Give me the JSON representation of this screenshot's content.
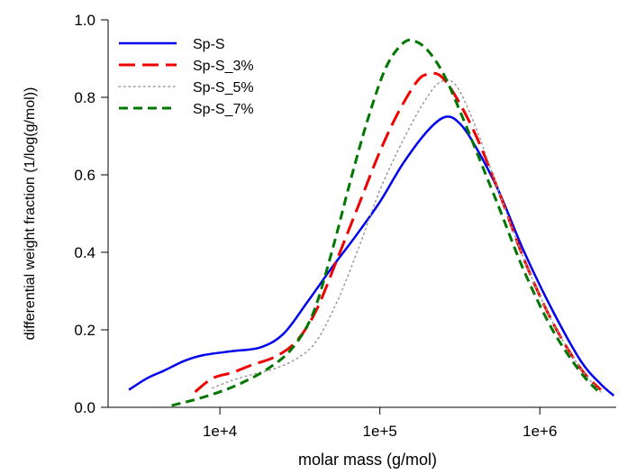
{
  "chart_data": {
    "type": "line",
    "title": "",
    "xlabel": "molar mass (g/mol)",
    "ylabel": "differential weight fraction (1/log(g/mol))",
    "xscale": "log",
    "xlim": [
      2000,
      3000000
    ],
    "ylim": [
      0.0,
      1.0
    ],
    "x_ticks": [
      10000,
      100000,
      1000000
    ],
    "x_tick_labels": [
      "1e+4",
      "1e+5",
      "1e+6"
    ],
    "y_ticks": [
      0.0,
      0.2,
      0.4,
      0.6,
      0.8,
      1.0
    ],
    "y_tick_labels": [
      "0.0",
      "0.2",
      "0.4",
      "0.6",
      "0.8",
      "1.0"
    ],
    "grid": false,
    "legend_position": "top-left",
    "series": [
      {
        "name": "Sp-S",
        "color": "#0000ee",
        "style": "solid",
        "x": [
          2700,
          3500,
          4500,
          6000,
          8000,
          12000,
          18000,
          25000,
          35000,
          50000,
          70000,
          100000,
          140000,
          200000,
          260000,
          320000,
          400000,
          550000,
          800000,
          1200000,
          1800000,
          2400000,
          2900000
        ],
        "y": [
          0.045,
          0.075,
          0.095,
          0.12,
          0.135,
          0.145,
          0.155,
          0.19,
          0.27,
          0.36,
          0.44,
          0.53,
          0.63,
          0.715,
          0.75,
          0.73,
          0.67,
          0.56,
          0.4,
          0.25,
          0.12,
          0.06,
          0.03
        ]
      },
      {
        "name": "Sp-S_3%",
        "color": "#ee0000",
        "style": "long-dash",
        "x": [
          7000,
          9000,
          12000,
          16000,
          22000,
          30000,
          40000,
          55000,
          75000,
          100000,
          130000,
          170000,
          200000,
          240000,
          300000,
          400000,
          550000,
          800000,
          1200000,
          1800000,
          2400000
        ],
        "y": [
          0.04,
          0.075,
          0.09,
          0.11,
          0.13,
          0.17,
          0.25,
          0.39,
          0.53,
          0.66,
          0.76,
          0.84,
          0.86,
          0.855,
          0.8,
          0.7,
          0.56,
          0.38,
          0.22,
          0.1,
          0.045
        ]
      },
      {
        "name": "Sp-S_5%",
        "color": "#999999",
        "style": "dotted",
        "x": [
          9000,
          12000,
          16000,
          22000,
          30000,
          40000,
          55000,
          75000,
          100000,
          140000,
          190000,
          240000,
          300000,
          400000,
          550000,
          800000,
          1200000,
          1800000,
          2400000
        ],
        "y": [
          0.05,
          0.07,
          0.085,
          0.1,
          0.125,
          0.17,
          0.28,
          0.42,
          0.56,
          0.69,
          0.79,
          0.84,
          0.83,
          0.72,
          0.56,
          0.38,
          0.22,
          0.1,
          0.04
        ]
      },
      {
        "name": "Sp-S_7%",
        "color": "#007700",
        "style": "dashed",
        "x": [
          5000,
          7000,
          10000,
          14000,
          20000,
          28000,
          38000,
          50000,
          65000,
          85000,
          110000,
          140000,
          165000,
          200000,
          250000,
          320000,
          420000,
          550000,
          800000,
          1200000,
          1800000,
          2400000
        ],
        "y": [
          0.005,
          0.02,
          0.04,
          0.065,
          0.1,
          0.15,
          0.24,
          0.4,
          0.58,
          0.75,
          0.88,
          0.94,
          0.945,
          0.92,
          0.86,
          0.76,
          0.64,
          0.52,
          0.35,
          0.2,
          0.09,
          0.035
        ]
      }
    ]
  }
}
